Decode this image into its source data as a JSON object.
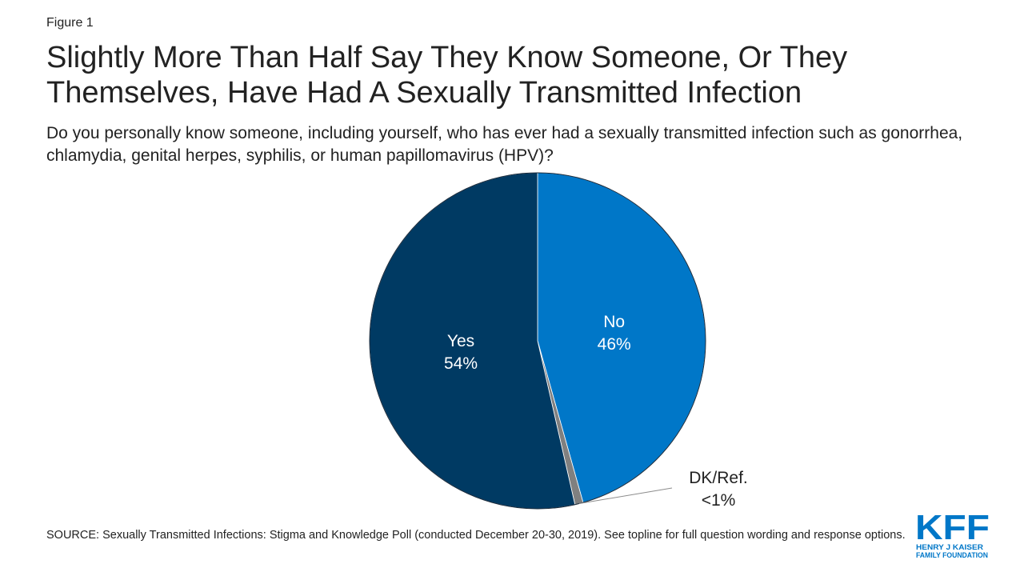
{
  "figure_label": "Figure 1",
  "title": "Slightly More Than Half Say They Know Someone, Or They Themselves, Have Had A Sexually Transmitted Infection",
  "subtitle": "Do you personally know someone, including yourself, who has ever had a sexually transmitted infection such as gonorrhea, chlamydia, genital herpes, syphilis, or human papillomavirus (HPV)?",
  "source": "SOURCE: Sexually Transmitted Infections: Stigma and Knowledge Poll (conducted December 20-30, 2019). See topline for full question wording and response options.",
  "logo": {
    "mark": "KFF",
    "line1": "HENRY J KAISER",
    "line2": "FAMILY FOUNDATION",
    "color": "#0077c8"
  },
  "chart_data": {
    "type": "pie",
    "title": "",
    "slices": [
      {
        "label": "No",
        "value_label": "46%",
        "value": 46,
        "color": "#0077c8"
      },
      {
        "label": "DK/Ref.",
        "value_label": "<1%",
        "value": 0.8,
        "color": "#808080"
      },
      {
        "label": "Yes",
        "value_label": "54%",
        "value": 54,
        "color": "#003a63"
      }
    ],
    "start": "top",
    "direction": "clockwise",
    "label_color_inside": "#ffffff",
    "label_color_outside": "#222222"
  }
}
